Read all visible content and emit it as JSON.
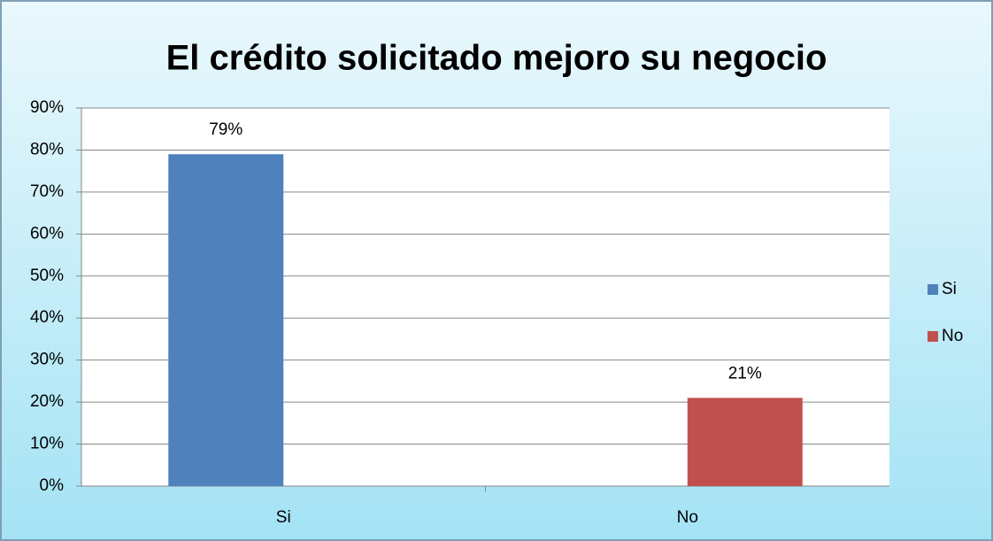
{
  "chart_data": {
    "type": "bar",
    "title": "El crédito solicitado mejoro su negocio",
    "categories": [
      "Si",
      "No"
    ],
    "series": [
      {
        "name": "Si",
        "color": "#4f81bd",
        "values": [
          79,
          null
        ],
        "value_labels": [
          "79%",
          null
        ]
      },
      {
        "name": "No",
        "color": "#c0504d",
        "values": [
          null,
          21
        ],
        "value_labels": [
          null,
          "21%"
        ]
      }
    ],
    "ylim": [
      0,
      90
    ],
    "yticks": [
      {
        "value": 0,
        "label": "0%"
      },
      {
        "value": 10,
        "label": "10%"
      },
      {
        "value": 20,
        "label": "20%"
      },
      {
        "value": 30,
        "label": "30%"
      },
      {
        "value": 40,
        "label": "40%"
      },
      {
        "value": 50,
        "label": "50%"
      },
      {
        "value": 60,
        "label": "60%"
      },
      {
        "value": 70,
        "label": "70%"
      },
      {
        "value": 80,
        "label": "80%"
      },
      {
        "value": 90,
        "label": "90%"
      }
    ],
    "grid": true,
    "legend": "right"
  }
}
